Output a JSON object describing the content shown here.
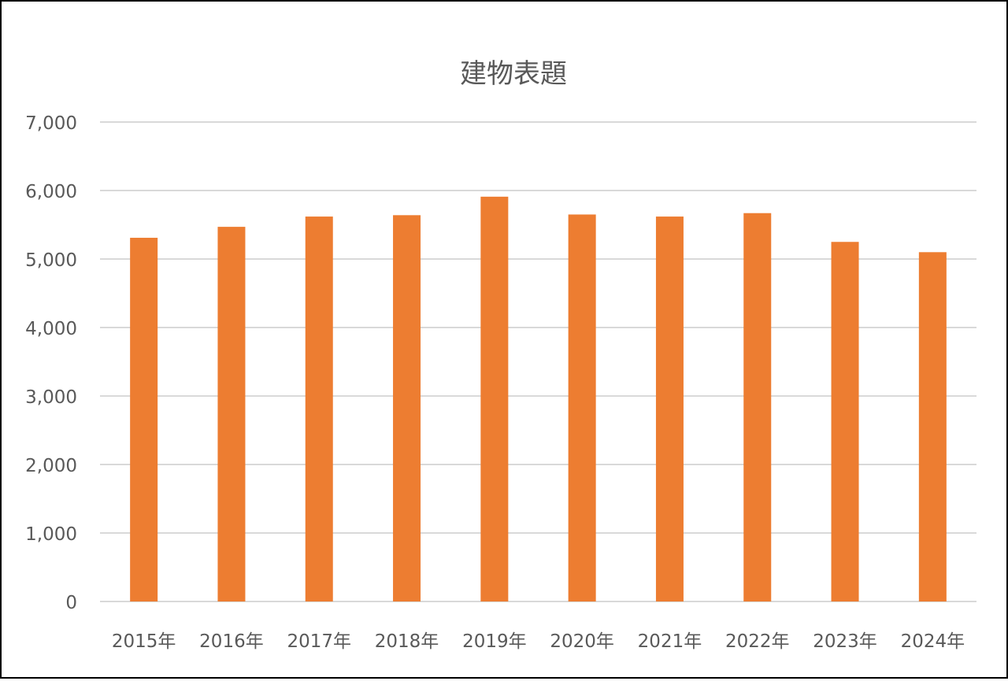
{
  "chart_data": {
    "type": "bar",
    "title": "建物表題",
    "xlabel": "",
    "ylabel": "",
    "categories": [
      "2015年",
      "2016年",
      "2017年",
      "2018年",
      "2019年",
      "2020年",
      "2021年",
      "2022年",
      "2023年",
      "2024年"
    ],
    "values": [
      5310,
      5470,
      5620,
      5640,
      5910,
      5650,
      5620,
      5670,
      5250,
      5100
    ],
    "ylim": [
      0,
      7000
    ],
    "yticks": [
      "0",
      "1,000",
      "2,000",
      "3,000",
      "4,000",
      "5,000",
      "6,000",
      "7,000"
    ],
    "grid": true,
    "legend": "none",
    "colors": {
      "bar": "#ED7D31",
      "grid": "#D9D9D9",
      "text": "#595959",
      "border": "#000000"
    }
  }
}
